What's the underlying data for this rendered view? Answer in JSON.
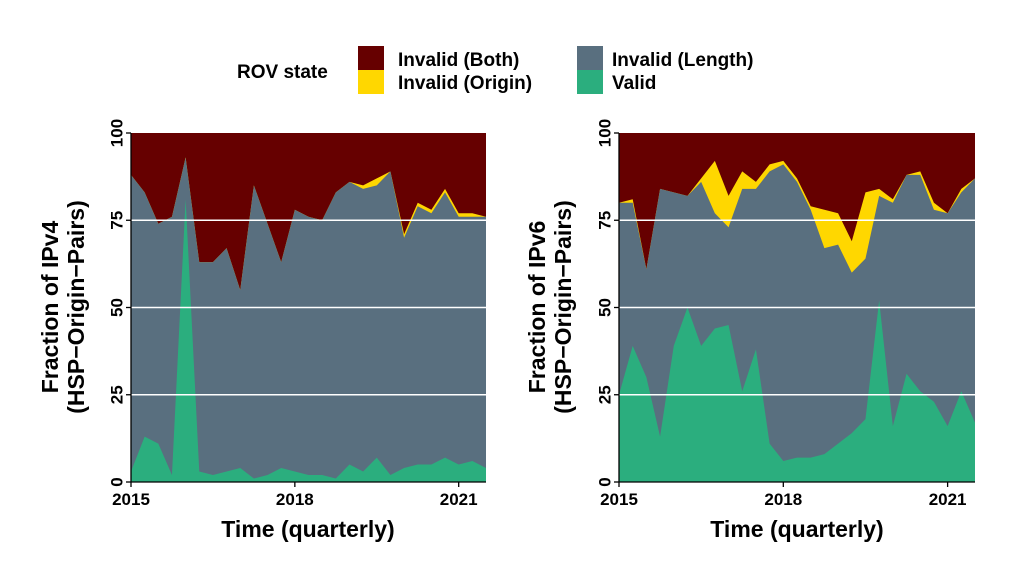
{
  "legend": {
    "title": "ROV state",
    "items": [
      {
        "label": "Invalid (Both)",
        "color": "#660000"
      },
      {
        "label": "Invalid (Origin)",
        "color": "#FFD700"
      },
      {
        "label": "Invalid (Length)",
        "color": "#596F7F"
      },
      {
        "label": "Valid",
        "color": "#2BAE7E"
      }
    ]
  },
  "chart_data": [
    {
      "type": "area",
      "stacked": true,
      "xlabel": "Time (quarterly)",
      "ylabel_line1": "Fraction of IPv4",
      "ylabel_line2": "(HSP−Origin−Pairs)",
      "xlim": [
        2015.0,
        2021.5
      ],
      "ylim": [
        0,
        100
      ],
      "x_ticks": [
        {
          "value": 2015,
          "label": "2015"
        },
        {
          "value": 2018,
          "label": "2018"
        },
        {
          "value": 2021,
          "label": "2021"
        }
      ],
      "y_ticks": [
        {
          "value": 0,
          "label": "0"
        },
        {
          "value": 25,
          "label": "25"
        },
        {
          "value": 50,
          "label": "50"
        },
        {
          "value": 75,
          "label": "75"
        },
        {
          "value": 100,
          "label": "100"
        }
      ],
      "grid": "horizontal",
      "x": [
        2015.0,
        2015.25,
        2015.5,
        2015.75,
        2016.0,
        2016.25,
        2016.5,
        2016.75,
        2017.0,
        2017.25,
        2017.5,
        2017.75,
        2018.0,
        2018.25,
        2018.5,
        2018.75,
        2019.0,
        2019.25,
        2019.5,
        2019.75,
        2020.0,
        2020.25,
        2020.5,
        2020.75,
        2021.0,
        2021.25,
        2021.5
      ],
      "series": [
        {
          "name": "Valid",
          "cumulative_top": [
            3,
            13,
            11,
            2,
            81,
            3,
            2,
            3,
            4,
            1,
            2,
            4,
            3,
            2,
            2,
            1,
            5,
            3,
            7,
            2,
            4,
            5,
            5,
            7,
            5,
            6,
            4
          ]
        },
        {
          "name": "Invalid (Length)",
          "cumulative_top": [
            88,
            83,
            74,
            76,
            93,
            63,
            63,
            67,
            55,
            85,
            74,
            63,
            78,
            76,
            75,
            83,
            86,
            84,
            85,
            89,
            70,
            79,
            77,
            83,
            76,
            76,
            76
          ]
        },
        {
          "name": "Invalid (Origin)",
          "cumulative_top": [
            88,
            83,
            74,
            76,
            93,
            63,
            63,
            67,
            55,
            85,
            74,
            63,
            78,
            76,
            75,
            83,
            86,
            85,
            87,
            89,
            71,
            80,
            78,
            84,
            77,
            77,
            76
          ]
        },
        {
          "name": "Invalid (Both)",
          "cumulative_top": [
            100,
            100,
            100,
            100,
            100,
            100,
            100,
            100,
            100,
            100,
            100,
            100,
            100,
            100,
            100,
            100,
            100,
            100,
            100,
            100,
            100,
            100,
            100,
            100,
            100,
            100,
            100
          ]
        }
      ]
    },
    {
      "type": "area",
      "stacked": true,
      "xlabel": "Time (quarterly)",
      "ylabel_line1": "Fraction of IPv6",
      "ylabel_line2": "(HSP−Origin−Pairs)",
      "xlim": [
        2015.0,
        2021.5
      ],
      "ylim": [
        0,
        100
      ],
      "x_ticks": [
        {
          "value": 2015,
          "label": "2015"
        },
        {
          "value": 2018,
          "label": "2018"
        },
        {
          "value": 2021,
          "label": "2021"
        }
      ],
      "y_ticks": [
        {
          "value": 0,
          "label": "0"
        },
        {
          "value": 25,
          "label": "25"
        },
        {
          "value": 50,
          "label": "50"
        },
        {
          "value": 75,
          "label": "75"
        },
        {
          "value": 100,
          "label": "100"
        }
      ],
      "grid": "horizontal",
      "x": [
        2015.0,
        2015.25,
        2015.5,
        2015.75,
        2016.0,
        2016.25,
        2016.5,
        2016.75,
        2017.0,
        2017.25,
        2017.5,
        2017.75,
        2018.0,
        2018.25,
        2018.5,
        2018.75,
        2019.0,
        2019.25,
        2019.5,
        2019.75,
        2020.0,
        2020.25,
        2020.5,
        2020.75,
        2021.0,
        2021.25,
        2021.5
      ],
      "series": [
        {
          "name": "Valid",
          "cumulative_top": [
            25,
            39,
            30,
            13,
            39,
            50,
            39,
            44,
            45,
            26,
            38,
            11,
            6,
            7,
            7,
            8,
            11,
            14,
            18,
            52,
            16,
            31,
            26,
            23,
            16,
            26,
            17
          ]
        },
        {
          "name": "Invalid (Length)",
          "cumulative_top": [
            80,
            80,
            61,
            84,
            83,
            82,
            86,
            77,
            73,
            84,
            84,
            89,
            91,
            86,
            78,
            67,
            68,
            60,
            64,
            82,
            80,
            88,
            88,
            78,
            77,
            83,
            87
          ]
        },
        {
          "name": "Invalid (Origin)",
          "cumulative_top": [
            80,
            81,
            61,
            84,
            83,
            82,
            87,
            92,
            82,
            89,
            86,
            91,
            92,
            87,
            79,
            78,
            77,
            69,
            83,
            84,
            81,
            88,
            89,
            80,
            77,
            84,
            87
          ]
        },
        {
          "name": "Invalid (Both)",
          "cumulative_top": [
            100,
            100,
            100,
            100,
            100,
            100,
            100,
            100,
            100,
            100,
            100,
            100,
            100,
            100,
            100,
            100,
            100,
            100,
            100,
            100,
            100,
            100,
            100,
            100,
            100,
            100,
            100
          ]
        }
      ]
    }
  ]
}
